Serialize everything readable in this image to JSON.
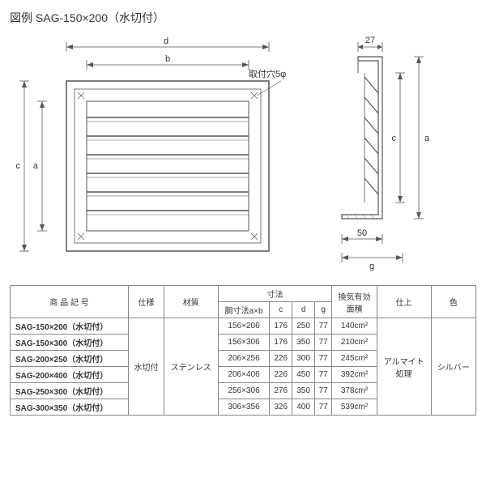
{
  "title": "図例 SAG-150×200（水切付）",
  "diagram": {
    "front": {
      "dim_d": "d",
      "dim_b": "b",
      "dim_a": "a",
      "dim_c": "c",
      "hole_label": "取付穴5φ",
      "outline_color": "#555555",
      "dim_color": "#555555",
      "louver_count": 7
    },
    "side": {
      "dim_27": "27",
      "dim_50": "50",
      "dim_a": "a",
      "dim_c": "c",
      "dim_g": "g",
      "outline_color": "#555555",
      "hatch_color": "#666666"
    }
  },
  "table": {
    "headers": {
      "product": "商 品 記 号",
      "spec": "仕様",
      "material": "材質",
      "dims_group": "寸法",
      "dim_ab": "胴寸法a×b",
      "dim_c": "c",
      "dim_d": "d",
      "dim_g": "g",
      "vent_area": "換気有効\n面積",
      "finish": "仕上",
      "color": "色"
    },
    "shared": {
      "spec": "水切付",
      "material": "ステンレス",
      "finish": "アルマイト\n処理",
      "color": "シルバー"
    },
    "rows": [
      {
        "product": "SAG-150×200（水切付）",
        "ab": "156×206",
        "c": "176",
        "d": "250",
        "g": "77",
        "area": "140cm²"
      },
      {
        "product": "SAG-150×300（水切付）",
        "ab": "156×306",
        "c": "176",
        "d": "350",
        "g": "77",
        "area": "210cm²"
      },
      {
        "product": "SAG-200×250（水切付）",
        "ab": "206×256",
        "c": "226",
        "d": "300",
        "g": "77",
        "area": "245cm²"
      },
      {
        "product": "SAG-200×400（水切付）",
        "ab": "206×406",
        "c": "226",
        "d": "450",
        "g": "77",
        "area": "392cm²"
      },
      {
        "product": "SAG-250×300（水切付）",
        "ab": "256×306",
        "c": "276",
        "d": "350",
        "g": "77",
        "area": "378cm²"
      },
      {
        "product": "SAG-300×350（水切付）",
        "ab": "306×356",
        "c": "326",
        "d": "400",
        "g": "77",
        "area": "539cm²"
      }
    ]
  }
}
